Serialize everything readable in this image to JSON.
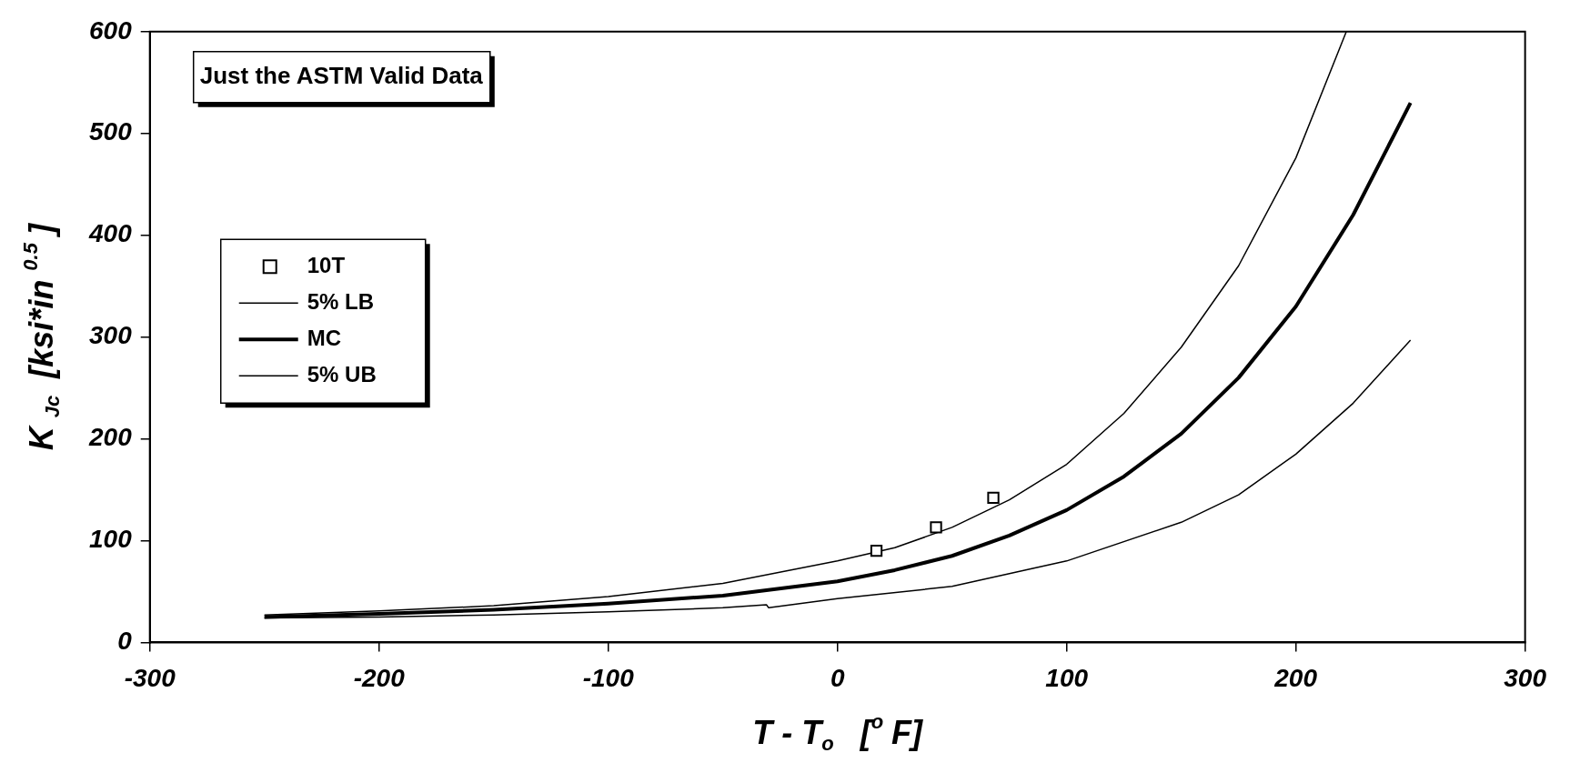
{
  "chart_data": {
    "type": "line",
    "xlabel": "T - T$_{o}$  [$^{o}$F]",
    "ylabel": "K $_{Jc}$ [ksi*in $^{0.5}$]",
    "xlim": [
      -300,
      300
    ],
    "xticks": [
      -300,
      -200,
      -100,
      0,
      100,
      200,
      300
    ],
    "ylim": [
      0,
      600
    ],
    "yticks": [
      0,
      100,
      200,
      300,
      400,
      500,
      600
    ],
    "grid": false,
    "legend": "left",
    "annotations": [
      "Just the ASTM Valid Data"
    ],
    "series": [
      {
        "name": "10T",
        "type": "scatter",
        "marker": "square",
        "color": "#000000",
        "x": [
          17,
          43,
          68
        ],
        "values": [
          90,
          113,
          142
        ]
      },
      {
        "name": "5% LB",
        "marker": "none",
        "color": "#000000",
        "x": [
          -250,
          -200,
          -150,
          -100,
          -50,
          -31,
          -30,
          0,
          50,
          100,
          150,
          175,
          200,
          225,
          250
        ],
        "values": [
          24,
          25,
          27,
          30,
          34,
          37,
          34,
          43,
          55,
          80,
          118,
          145,
          185,
          235,
          297
        ]
      },
      {
        "name": "MC",
        "marker": "none",
        "color": "#000000",
        "x": [
          -250,
          -200,
          -150,
          -100,
          -50,
          0,
          25,
          50,
          75,
          100,
          125,
          150,
          175,
          200,
          225,
          250
        ],
        "values": [
          25,
          28,
          32,
          38,
          46,
          60,
          71,
          85,
          105,
          130,
          163,
          205,
          260,
          330,
          420,
          530
        ]
      },
      {
        "name": "5% UB",
        "marker": "none",
        "color": "#000000",
        "x": [
          -250,
          -200,
          -150,
          -100,
          -50,
          0,
          25,
          50,
          75,
          100,
          125,
          150,
          175,
          200,
          222
        ],
        "values": [
          27,
          31,
          36,
          45,
          58,
          80,
          93,
          113,
          140,
          175,
          225,
          290,
          370,
          476,
          600
        ]
      }
    ]
  }
}
